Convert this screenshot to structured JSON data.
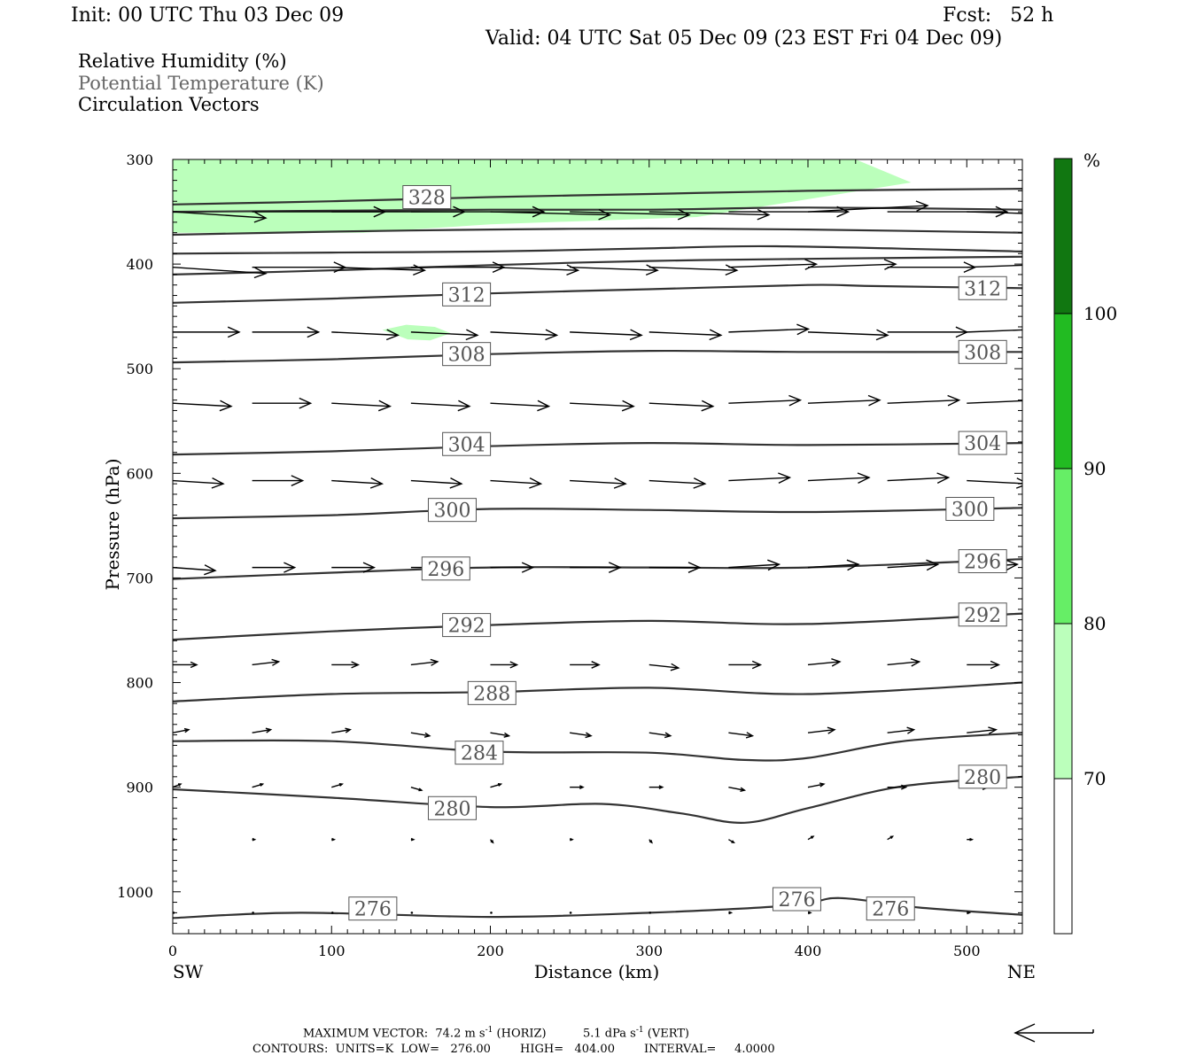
{
  "header": {
    "init": "Init: 00 UTC Thu 03 Dec 09",
    "fcst": "Fcst:   52 h",
    "valid": "Valid: 04 UTC Sat 05 Dec 09 (23 EST Fri 04 Dec 09)"
  },
  "legend": {
    "rh": "Relative Humidity (%)",
    "theta": "Potential Temperature (K)",
    "vectors": "Circulation Vectors"
  },
  "colors": {
    "theta_line": "#333333",
    "theta_label": "#555555",
    "vector": "#000000",
    "rh_70_80": "#bbffbb",
    "rh_80_90": "#66ee66",
    "rh_90_100": "#22bb22",
    "rh_100": "#117711"
  },
  "footer": {
    "max_vector_label": "MAXIMUM VECTOR:",
    "max_vector_horiz_value": "74.2 m s",
    "max_vector_horiz_unit": "(HORIZ)",
    "max_vector_vert_value": "5.1 dPa s",
    "max_vector_vert_unit": "(VERT)",
    "exponent": "-1",
    "contours": "CONTOURS:  UNITS=K  LOW=   276.00        HIGH=   404.00        INTERVAL=     4.0000"
  },
  "chart_data": {
    "type": "cross-section",
    "xlabel": "Distance (km)",
    "ylabel": "Pressure (hPa)",
    "xlim": [
      0,
      535
    ],
    "ylim": [
      1040,
      300
    ],
    "x_ticks": [
      0,
      100,
      200,
      300,
      400,
      500
    ],
    "y_ticks": [
      300,
      400,
      500,
      600,
      700,
      800,
      900,
      1000
    ],
    "x_end_labels": {
      "left": "SW",
      "right": "NE"
    },
    "colorbar": {
      "unit": "%",
      "levels": [
        70,
        80,
        90,
        100
      ],
      "colors": [
        "#ffffff",
        "#bbffbb",
        "#66ee66",
        "#22bb22",
        "#117711"
      ]
    },
    "rh_regions": [
      {
        "level": "70-80",
        "points": [
          [
            0,
            300
          ],
          [
            430,
            300
          ],
          [
            465,
            322
          ],
          [
            400,
            338
          ],
          [
            330,
            355
          ],
          [
            200,
            362
          ],
          [
            120,
            370
          ],
          [
            0,
            370
          ]
        ]
      },
      {
        "level": "70-80",
        "points": [
          [
            132,
            463
          ],
          [
            147,
            458
          ],
          [
            165,
            460
          ],
          [
            175,
            466
          ],
          [
            162,
            473
          ],
          [
            148,
            472
          ]
        ]
      }
    ],
    "theta_contours": [
      {
        "value": 328,
        "points": [
          [
            0,
            343
          ],
          [
            100,
            340
          ],
          [
            200,
            336
          ],
          [
            300,
            333
          ],
          [
            400,
            330
          ],
          [
            535,
            328
          ]
        ]
      },
      {
        "value": 324,
        "points": [
          [
            0,
            350
          ],
          [
            100,
            349
          ],
          [
            200,
            348
          ],
          [
            300,
            348
          ],
          [
            400,
            346
          ],
          [
            535,
            348
          ]
        ]
      },
      {
        "value": 320,
        "points": [
          [
            0,
            372
          ],
          [
            100,
            369
          ],
          [
            200,
            367
          ],
          [
            300,
            366
          ],
          [
            400,
            367
          ],
          [
            535,
            370
          ]
        ]
      },
      {
        "value": 316,
        "points": [
          [
            0,
            390
          ],
          [
            100,
            389
          ],
          [
            200,
            388
          ],
          [
            300,
            385
          ],
          [
            380,
            383
          ],
          [
            535,
            388
          ]
        ]
      },
      {
        "value": 314,
        "points": [
          [
            0,
            410
          ],
          [
            100,
            406
          ],
          [
            200,
            401
          ],
          [
            300,
            397
          ],
          [
            400,
            395
          ],
          [
            535,
            393
          ]
        ]
      },
      {
        "value": 312,
        "points": [
          [
            0,
            437
          ],
          [
            100,
            433
          ],
          [
            200,
            428
          ],
          [
            300,
            424
          ],
          [
            400,
            420
          ],
          [
            440,
            421
          ],
          [
            535,
            423
          ]
        ]
      },
      {
        "value": 308,
        "points": [
          [
            0,
            494
          ],
          [
            100,
            491
          ],
          [
            200,
            486
          ],
          [
            300,
            483
          ],
          [
            400,
            484
          ],
          [
            535,
            484
          ]
        ]
      },
      {
        "value": 304,
        "points": [
          [
            0,
            582
          ],
          [
            100,
            579
          ],
          [
            200,
            574
          ],
          [
            300,
            571
          ],
          [
            400,
            573
          ],
          [
            535,
            571
          ]
        ]
      },
      {
        "value": 300,
        "points": [
          [
            0,
            643
          ],
          [
            100,
            640
          ],
          [
            200,
            634
          ],
          [
            300,
            635
          ],
          [
            400,
            637
          ],
          [
            535,
            633
          ]
        ]
      },
      {
        "value": 296,
        "points": [
          [
            0,
            701
          ],
          [
            100,
            695
          ],
          [
            200,
            690
          ],
          [
            300,
            690
          ],
          [
            400,
            690
          ],
          [
            535,
            682
          ]
        ]
      },
      {
        "value": 292,
        "points": [
          [
            0,
            759
          ],
          [
            100,
            751
          ],
          [
            200,
            745
          ],
          [
            300,
            741
          ],
          [
            400,
            744
          ],
          [
            535,
            734
          ]
        ]
      },
      {
        "value": 288,
        "points": [
          [
            0,
            818
          ],
          [
            100,
            811
          ],
          [
            200,
            809
          ],
          [
            300,
            805
          ],
          [
            400,
            811
          ],
          [
            535,
            800
          ]
        ]
      },
      {
        "value": 284,
        "points": [
          [
            0,
            856
          ],
          [
            100,
            856
          ],
          [
            200,
            866
          ],
          [
            300,
            867
          ],
          [
            360,
            874
          ],
          [
            400,
            872
          ],
          [
            460,
            856
          ],
          [
            535,
            848
          ]
        ]
      },
      {
        "value": 280,
        "points": [
          [
            0,
            902
          ],
          [
            100,
            910
          ],
          [
            200,
            919
          ],
          [
            270,
            916
          ],
          [
            320,
            925
          ],
          [
            360,
            934
          ],
          [
            400,
            920
          ],
          [
            460,
            899
          ],
          [
            535,
            890
          ]
        ]
      },
      {
        "value": 276,
        "points": [
          [
            0,
            1025
          ],
          [
            80,
            1020
          ],
          [
            200,
            1024
          ],
          [
            300,
            1020
          ],
          [
            390,
            1013
          ],
          [
            420,
            1006
          ],
          [
            470,
            1015
          ],
          [
            535,
            1022
          ]
        ]
      }
    ],
    "theta_labels": [
      {
        "text": "328",
        "x": 160,
        "p": 336
      },
      {
        "text": "312",
        "x": 185,
        "p": 429
      },
      {
        "text": "312",
        "x": 510,
        "p": 423
      },
      {
        "text": "308",
        "x": 185,
        "p": 486
      },
      {
        "text": "308",
        "x": 510,
        "p": 484
      },
      {
        "text": "304",
        "x": 185,
        "p": 572
      },
      {
        "text": "304",
        "x": 510,
        "p": 571
      },
      {
        "text": "300",
        "x": 176,
        "p": 635
      },
      {
        "text": "300",
        "x": 502,
        "p": 634
      },
      {
        "text": "296",
        "x": 172,
        "p": 691
      },
      {
        "text": "296",
        "x": 510,
        "p": 684
      },
      {
        "text": "292",
        "x": 185,
        "p": 745
      },
      {
        "text": "292",
        "x": 510,
        "p": 735
      },
      {
        "text": "288",
        "x": 201,
        "p": 810
      },
      {
        "text": "284",
        "x": 193,
        "p": 867
      },
      {
        "text": "280",
        "x": 176,
        "p": 920
      },
      {
        "text": "280",
        "x": 510,
        "p": 890
      },
      {
        "text": "276",
        "x": 126,
        "p": 1016
      },
      {
        "text": "276",
        "x": 393,
        "p": 1007
      },
      {
        "text": "276",
        "x": 452,
        "p": 1016
      }
    ],
    "vector_rows": [
      {
        "p": 350,
        "x": [
          0,
          50,
          100,
          150,
          200,
          250,
          300,
          350,
          400,
          450,
          500
        ],
        "u": [
          35,
          50,
          50,
          50,
          45,
          45,
          45,
          45,
          45,
          45,
          40
        ],
        "w": [
          -2,
          0,
          0,
          0,
          -1,
          -1,
          -1,
          0,
          2,
          0,
          -1
        ]
      },
      {
        "p": 403,
        "x": [
          0,
          50,
          100,
          150,
          200,
          250,
          300,
          350,
          400,
          450,
          500
        ],
        "u": [
          35,
          35,
          35,
          35,
          33,
          33,
          33,
          33,
          33,
          33,
          33
        ],
        "w": [
          -2,
          0,
          -1,
          0,
          -1,
          -1,
          -1,
          1,
          1,
          0,
          1
        ]
      },
      {
        "p": 465,
        "x": [
          0,
          50,
          100,
          150,
          200,
          250,
          300,
          350,
          400,
          450,
          500
        ],
        "u": [
          25,
          25,
          25,
          25,
          25,
          27,
          27,
          30,
          30,
          30,
          30
        ],
        "w": [
          0,
          0,
          -1,
          -1,
          -1,
          -1,
          -1,
          1,
          -1,
          0,
          1
        ]
      },
      {
        "p": 533,
        "x": [
          0,
          50,
          100,
          150,
          200,
          250,
          300,
          350,
          400,
          450,
          500
        ],
        "u": [
          22,
          22,
          22,
          22,
          22,
          24,
          24,
          27,
          27,
          27,
          27
        ],
        "w": [
          -1,
          0,
          -1,
          -1,
          -1,
          -1,
          -1,
          1,
          1,
          1,
          1
        ]
      },
      {
        "p": 607,
        "x": [
          0,
          50,
          100,
          150,
          200,
          250,
          300,
          350,
          400,
          450,
          500
        ],
        "u": [
          19,
          19,
          19,
          19,
          19,
          21,
          21,
          23,
          23,
          23,
          23
        ],
        "w": [
          -1,
          0,
          -1,
          -1,
          -1,
          -1,
          -1,
          1,
          1,
          1,
          -1
        ]
      },
      {
        "p": 690,
        "x": [
          0,
          50,
          100,
          150,
          200,
          250,
          300,
          350,
          400,
          450,
          500
        ],
        "u": [
          16,
          16,
          16,
          16,
          16,
          19,
          19,
          19,
          19,
          19,
          19
        ],
        "w": [
          -1,
          0,
          0,
          0,
          0,
          0,
          0,
          1,
          1,
          1,
          1
        ]
      },
      {
        "p": 783,
        "x": [
          0,
          50,
          100,
          150,
          200,
          250,
          300,
          350,
          400,
          450,
          500
        ],
        "u": [
          9,
          10,
          10,
          10,
          10,
          11,
          11,
          12,
          12,
          12,
          12
        ],
        "w": [
          0,
          1,
          0,
          1,
          0,
          0,
          -1,
          0,
          1,
          1,
          0
        ]
      },
      {
        "p": 848,
        "x": [
          0,
          50,
          100,
          150,
          200,
          250,
          300,
          350,
          400,
          450,
          500
        ],
        "u": [
          6,
          7,
          7,
          7,
          7,
          8,
          8,
          9,
          10,
          10,
          11
        ],
        "w": [
          1,
          1,
          1,
          -1,
          -1,
          -1,
          -1,
          -1,
          1,
          1,
          1
        ]
      },
      {
        "p": 900,
        "x": [
          0,
          50,
          100,
          150,
          200,
          250,
          300,
          350,
          400,
          450,
          500
        ],
        "u": [
          3,
          4,
          4,
          4,
          4,
          5,
          5,
          6,
          6,
          7,
          8
        ],
        "w": [
          1,
          1,
          1,
          -1,
          1,
          0,
          0,
          -1,
          1,
          0,
          0
        ]
      },
      {
        "p": 950,
        "x": [
          0,
          50,
          100,
          150,
          200,
          250,
          300,
          350,
          400,
          450,
          500
        ],
        "u": [
          0,
          1,
          1,
          1,
          1,
          1,
          1,
          2,
          2,
          2,
          2
        ],
        "w": [
          0,
          0,
          0,
          0,
          -1,
          0,
          -1,
          -1,
          1,
          1,
          0
        ]
      },
      {
        "p": 1020,
        "x": [
          0,
          50,
          100,
          150,
          200,
          250,
          300,
          350,
          400,
          450,
          500
        ],
        "u": [
          0,
          0,
          0,
          0,
          0,
          0,
          0,
          1,
          1,
          1,
          1
        ],
        "w": [
          0,
          0,
          0,
          0,
          0,
          0,
          0,
          0,
          0,
          0,
          0
        ]
      }
    ]
  }
}
